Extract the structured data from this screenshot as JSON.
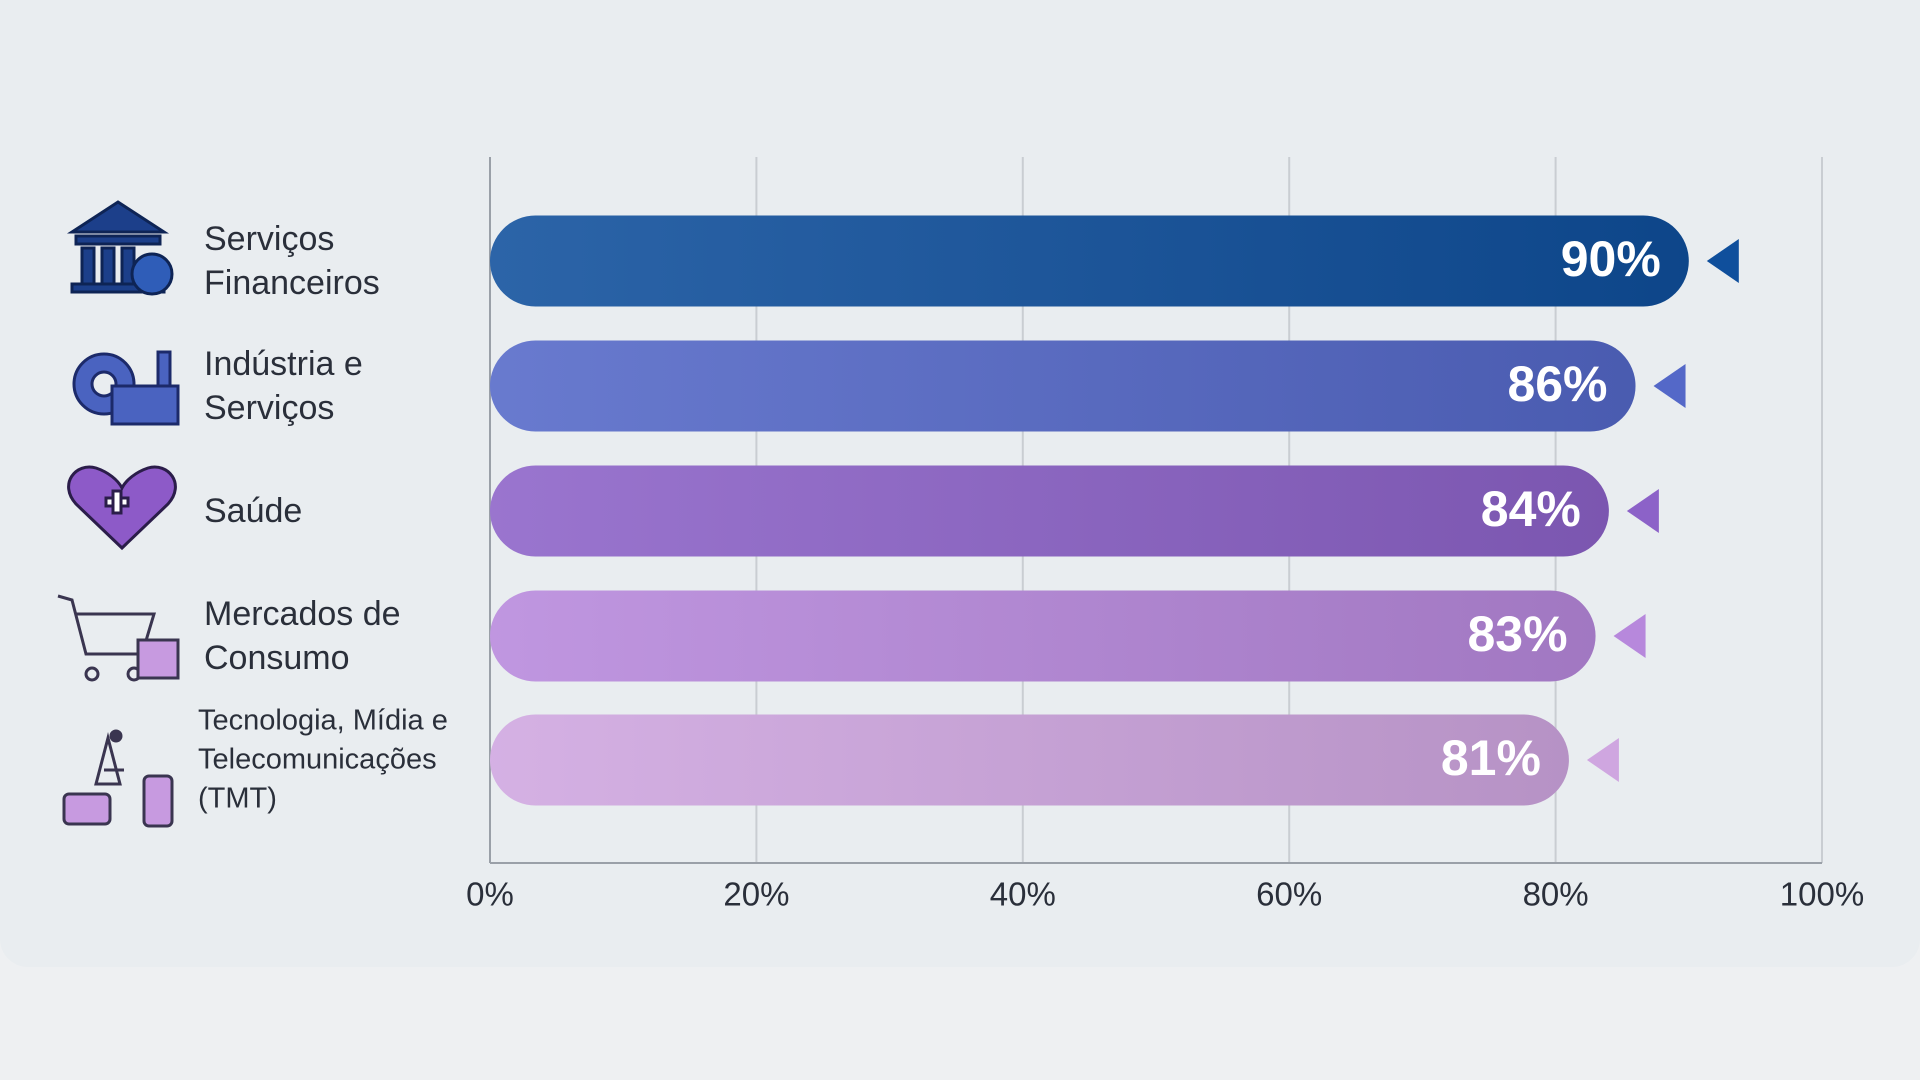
{
  "chart_data": {
    "type": "hbar",
    "categories": [
      "Serviços Financeiros",
      "Indústria e Serviços",
      "Saúde",
      "Mercados de Consumo",
      "Tecnologia, Mídia e Telecomunicações (TMT)"
    ],
    "values": [
      90,
      86,
      84,
      83,
      81
    ],
    "value_labels": [
      "90%",
      "86%",
      "84%",
      "83%",
      "81%"
    ],
    "colors": [
      "#0f4f9c",
      "#5468c8",
      "#8c62c8",
      "#b788dc",
      "#cfa6e0"
    ],
    "xlim": [
      0,
      100
    ],
    "xticks": [
      {
        "value": 0,
        "label": "0%"
      },
      {
        "value": 20,
        "label": "20%"
      },
      {
        "value": 40,
        "label": "40%"
      },
      {
        "value": 60,
        "label": "60%"
      },
      {
        "value": 80,
        "label": "80%"
      },
      {
        "value": 100,
        "label": "100%"
      }
    ],
    "grid": true
  }
}
